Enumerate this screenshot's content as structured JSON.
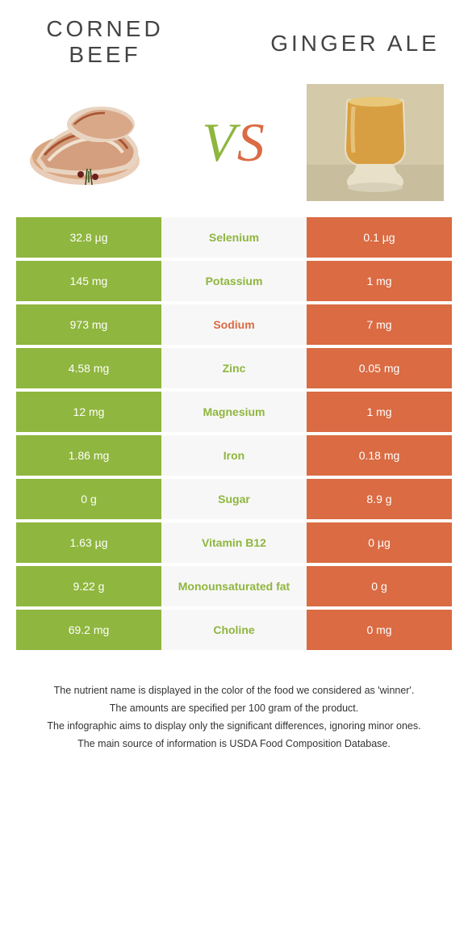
{
  "colors": {
    "green": "#8fb63e",
    "orange": "#da6b43",
    "mid_bg": "#f7f7f7",
    "text_white": "#ffffff"
  },
  "food_left": {
    "title_line1": "CORNED",
    "title_line2": "BEEF"
  },
  "food_right": {
    "title": "GINGER ALE"
  },
  "vs": {
    "v": "V",
    "s": "S"
  },
  "rows": [
    {
      "left": "32.8 µg",
      "label": "Selenium",
      "right": "0.1 µg",
      "winner": "left"
    },
    {
      "left": "145 mg",
      "label": "Potassium",
      "right": "1 mg",
      "winner": "left"
    },
    {
      "left": "973 mg",
      "label": "Sodium",
      "right": "7 mg",
      "winner": "right"
    },
    {
      "left": "4.58 mg",
      "label": "Zinc",
      "right": "0.05 mg",
      "winner": "left"
    },
    {
      "left": "12 mg",
      "label": "Magnesium",
      "right": "1 mg",
      "winner": "left"
    },
    {
      "left": "1.86 mg",
      "label": "Iron",
      "right": "0.18 mg",
      "winner": "left"
    },
    {
      "left": "0 g",
      "label": "Sugar",
      "right": "8.9 g",
      "winner": "left"
    },
    {
      "left": "1.63 µg",
      "label": "Vitamin B12",
      "right": "0 µg",
      "winner": "left"
    },
    {
      "left": "9.22 g",
      "label": "Monounsaturated fat",
      "right": "0 g",
      "winner": "left"
    },
    {
      "left": "69.2 mg",
      "label": "Choline",
      "right": "0 mg",
      "winner": "left"
    }
  ],
  "caption": {
    "line1": "The nutrient name is displayed in the color of the food we considered as 'winner'.",
    "line2": "The amounts are specified per 100 gram of the product.",
    "line3": "The infographic aims to display only the significant differences, ignoring minor ones.",
    "line4": "The main source of information is USDA Food Composition Database."
  }
}
